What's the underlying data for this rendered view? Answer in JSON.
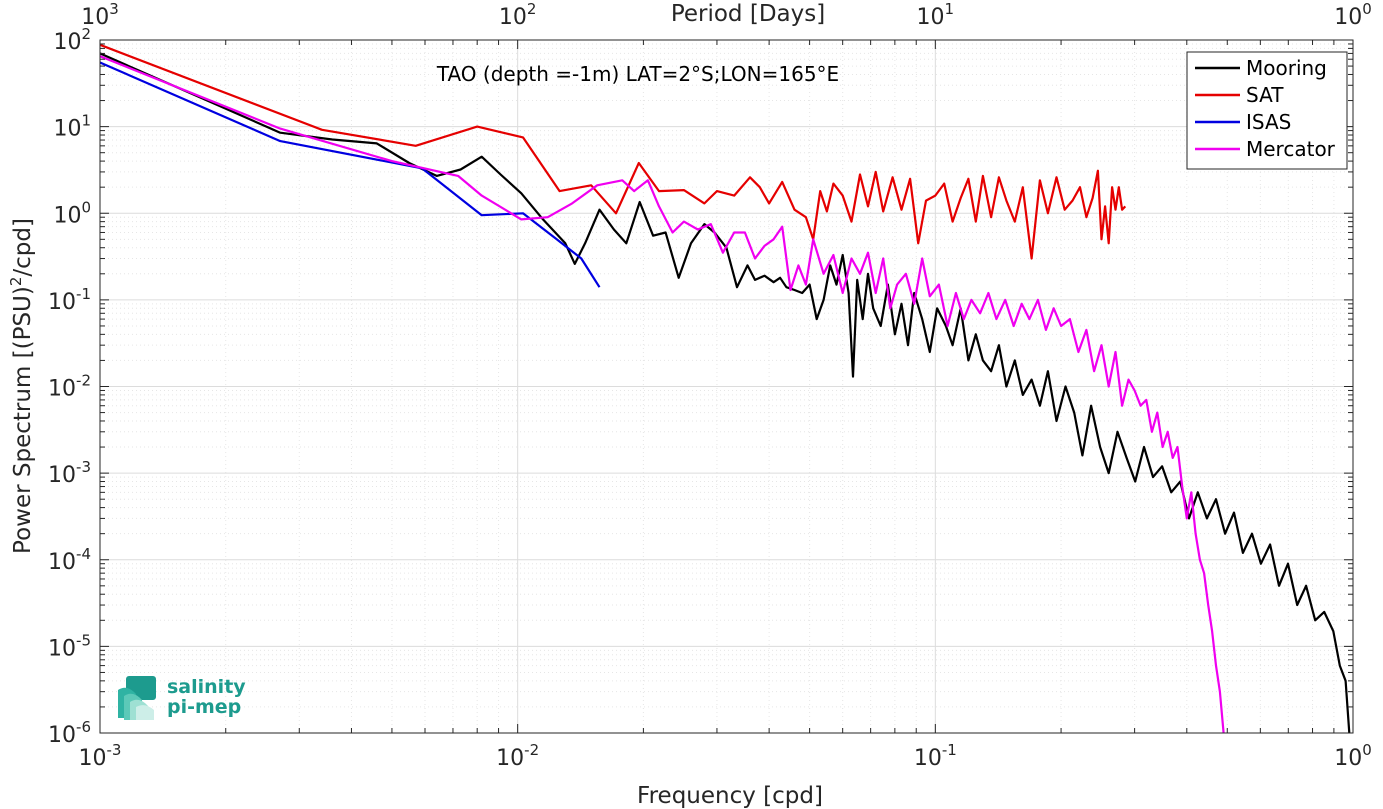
{
  "chart_data": {
    "type": "line",
    "annotation": "TAO (depth =-1m) LAT=2°S;LON=165°E",
    "xlabel": "Frequency [cpd]",
    "ylabel": "Power Spectrum [(PSU)²/cpd]",
    "ylabel_main": "Power Spectrum [(PSU)",
    "ylabel_sup": "2",
    "ylabel_tail": "/cpd]",
    "top_axis_label": "Period [Days]",
    "x_scale": "log",
    "y_scale": "log",
    "xlim": [
      0.001,
      1
    ],
    "ylim": [
      1e-06,
      100
    ],
    "x_ticks": [
      {
        "base": "10",
        "exp": "-3",
        "value": 0.001
      },
      {
        "base": "10",
        "exp": "-2",
        "value": 0.01
      },
      {
        "base": "10",
        "exp": "-1",
        "value": 0.1
      },
      {
        "base": "10",
        "exp": "0",
        "value": 1
      }
    ],
    "y_ticks": [
      {
        "base": "10",
        "exp": "2",
        "value": 100
      },
      {
        "base": "10",
        "exp": "1",
        "value": 10
      },
      {
        "base": "10",
        "exp": "0",
        "value": 1
      },
      {
        "base": "10",
        "exp": "-1",
        "value": 0.1
      },
      {
        "base": "10",
        "exp": "-2",
        "value": 0.01
      },
      {
        "base": "10",
        "exp": "-3",
        "value": 0.001
      },
      {
        "base": "10",
        "exp": "-4",
        "value": 0.0001
      },
      {
        "base": "10",
        "exp": "-5",
        "value": 1e-05
      },
      {
        "base": "10",
        "exp": "-6",
        "value": 1e-06
      }
    ],
    "top_ticks": [
      {
        "base": "10",
        "exp": "3",
        "value": 1000
      },
      {
        "base": "10",
        "exp": "2",
        "value": 100
      },
      {
        "base": "10",
        "exp": "1",
        "value": 10
      },
      {
        "base": "10",
        "exp": "0",
        "value": 1
      }
    ],
    "grid": true,
    "legend_position": "top-right",
    "series": [
      {
        "name": "Mooring",
        "color": "#000000",
        "x": [
          0.001,
          0.0027,
          0.0036,
          0.0046,
          0.0055,
          0.0064,
          0.0073,
          0.0082,
          0.0091,
          0.0102,
          0.0115,
          0.013,
          0.0137,
          0.0145,
          0.0157,
          0.017,
          0.0182,
          0.0196,
          0.0211,
          0.0226,
          0.0243,
          0.026,
          0.028,
          0.0296,
          0.0316,
          0.0335,
          0.0355,
          0.037,
          0.039,
          0.041,
          0.0425,
          0.044,
          0.046,
          0.048,
          0.05,
          0.052,
          0.054,
          0.056,
          0.058,
          0.06,
          0.062,
          0.0635,
          0.065,
          0.067,
          0.069,
          0.071,
          0.074,
          0.077,
          0.08,
          0.083,
          0.086,
          0.089,
          0.093,
          0.097,
          0.101,
          0.106,
          0.11,
          0.115,
          0.12,
          0.125,
          0.13,
          0.136,
          0.142,
          0.148,
          0.155,
          0.162,
          0.17,
          0.178,
          0.186,
          0.195,
          0.205,
          0.215,
          0.225,
          0.236,
          0.248,
          0.26,
          0.273,
          0.287,
          0.301,
          0.316,
          0.332,
          0.349,
          0.367,
          0.386,
          0.405,
          0.425,
          0.447,
          0.47,
          0.494,
          0.519,
          0.545,
          0.573,
          0.602,
          0.633,
          0.665,
          0.699,
          0.735,
          0.772,
          0.812,
          0.853,
          0.897,
          0.93,
          0.96,
          0.98
        ],
        "y": [
          70,
          8.5,
          7.1,
          6.4,
          3.8,
          2.7,
          3.2,
          4.5,
          2.8,
          1.7,
          0.85,
          0.45,
          0.26,
          0.45,
          1.1,
          0.65,
          0.45,
          1.35,
          0.55,
          0.6,
          0.18,
          0.45,
          0.75,
          0.6,
          0.4,
          0.14,
          0.25,
          0.17,
          0.19,
          0.16,
          0.18,
          0.14,
          0.13,
          0.12,
          0.15,
          0.06,
          0.1,
          0.25,
          0.15,
          0.33,
          0.12,
          0.013,
          0.17,
          0.06,
          0.2,
          0.08,
          0.05,
          0.15,
          0.04,
          0.09,
          0.03,
          0.12,
          0.06,
          0.025,
          0.08,
          0.05,
          0.03,
          0.08,
          0.02,
          0.04,
          0.02,
          0.015,
          0.03,
          0.01,
          0.02,
          0.008,
          0.012,
          0.006,
          0.015,
          0.004,
          0.01,
          0.005,
          0.0016,
          0.006,
          0.002,
          0.001,
          0.003,
          0.0015,
          0.0008,
          0.002,
          0.0009,
          0.0012,
          0.0006,
          0.0008,
          0.0003,
          0.0006,
          0.0003,
          0.0005,
          0.0002,
          0.00035,
          0.00012,
          0.0002,
          9e-05,
          0.00015,
          5e-05,
          9e-05,
          3e-05,
          5e-05,
          2e-05,
          2.5e-05,
          1.5e-05,
          6e-06,
          4e-06,
          1e-06
        ]
      },
      {
        "name": "SAT",
        "color": "#e50000",
        "x": [
          0.001,
          0.0034,
          0.0057,
          0.008,
          0.0103,
          0.0126,
          0.015,
          0.0172,
          0.0195,
          0.0218,
          0.025,
          0.028,
          0.03,
          0.033,
          0.036,
          0.038,
          0.04,
          0.043,
          0.046,
          0.049,
          0.051,
          0.053,
          0.055,
          0.057,
          0.06,
          0.063,
          0.066,
          0.069,
          0.072,
          0.075,
          0.079,
          0.083,
          0.087,
          0.091,
          0.095,
          0.1,
          0.105,
          0.11,
          0.115,
          0.12,
          0.125,
          0.13,
          0.136,
          0.142,
          0.148,
          0.155,
          0.162,
          0.17,
          0.178,
          0.186,
          0.195,
          0.204,
          0.213,
          0.222,
          0.23,
          0.238,
          0.245,
          0.25,
          0.255,
          0.26,
          0.265,
          0.27,
          0.275,
          0.28,
          0.285
        ],
        "y": [
          88,
          9.2,
          6,
          10,
          7.5,
          1.8,
          2.1,
          1,
          3.8,
          1.8,
          1.85,
          1.3,
          1.8,
          1.6,
          2.6,
          2,
          1.3,
          2.3,
          1.1,
          0.9,
          0.5,
          1.8,
          1.05,
          2.2,
          1.6,
          0.8,
          2.8,
          1.2,
          3,
          1.05,
          2.6,
          1.1,
          2.5,
          0.45,
          1.4,
          1.6,
          2.2,
          0.8,
          1.5,
          2.5,
          0.8,
          2.7,
          0.9,
          2.6,
          1.4,
          0.8,
          2,
          0.3,
          2.4,
          1,
          2.6,
          1.1,
          1.4,
          2,
          0.9,
          1.5,
          3.1,
          0.5,
          1.2,
          0.45,
          2,
          1.1,
          2,
          1.1,
          1.2
        ]
      },
      {
        "name": "ISAS",
        "color": "#0000e0",
        "x": [
          0.001,
          0.0027,
          0.0059,
          0.0082,
          0.0103,
          0.0124,
          0.0142,
          0.0157
        ],
        "y": [
          55,
          6.8,
          3.3,
          0.95,
          1,
          0.5,
          0.3,
          0.14
        ]
      },
      {
        "name": "Mercator",
        "color": "#f000f0",
        "x": [
          0.001,
          0.0027,
          0.005,
          0.0072,
          0.0082,
          0.0102,
          0.0118,
          0.0135,
          0.0155,
          0.0178,
          0.019,
          0.0205,
          0.0218,
          0.0235,
          0.025,
          0.027,
          0.029,
          0.031,
          0.033,
          0.035,
          0.037,
          0.039,
          0.041,
          0.043,
          0.045,
          0.047,
          0.049,
          0.051,
          0.054,
          0.057,
          0.06,
          0.063,
          0.066,
          0.069,
          0.072,
          0.075,
          0.078,
          0.081,
          0.085,
          0.089,
          0.093,
          0.097,
          0.102,
          0.107,
          0.112,
          0.117,
          0.122,
          0.128,
          0.134,
          0.14,
          0.147,
          0.154,
          0.161,
          0.168,
          0.176,
          0.184,
          0.192,
          0.2,
          0.21,
          0.22,
          0.23,
          0.24,
          0.25,
          0.26,
          0.27,
          0.28,
          0.29,
          0.3,
          0.31,
          0.32,
          0.33,
          0.34,
          0.35,
          0.36,
          0.37,
          0.38,
          0.39,
          0.4,
          0.41,
          0.42,
          0.43,
          0.44,
          0.45,
          0.46,
          0.47,
          0.48,
          0.49
        ],
        "y": [
          65,
          9.5,
          4,
          2.7,
          1.6,
          0.85,
          0.9,
          1.3,
          2.1,
          2.4,
          1.8,
          2.4,
          1.2,
          0.6,
          0.8,
          0.65,
          0.75,
          0.35,
          0.6,
          0.6,
          0.3,
          0.42,
          0.5,
          0.7,
          0.13,
          0.25,
          0.15,
          0.5,
          0.2,
          0.33,
          0.12,
          0.3,
          0.2,
          0.35,
          0.12,
          0.3,
          0.08,
          0.15,
          0.2,
          0.09,
          0.3,
          0.11,
          0.15,
          0.05,
          0.12,
          0.06,
          0.1,
          0.07,
          0.12,
          0.06,
          0.1,
          0.05,
          0.09,
          0.06,
          0.1,
          0.045,
          0.08,
          0.05,
          0.06,
          0.025,
          0.045,
          0.015,
          0.03,
          0.01,
          0.025,
          0.006,
          0.012,
          0.009,
          0.006,
          0.007,
          0.003,
          0.005,
          0.002,
          0.003,
          0.0015,
          0.002,
          0.0007,
          0.0003,
          0.0006,
          0.0002,
          0.0001,
          7e-05,
          3e-05,
          1.5e-05,
          6e-06,
          3e-06,
          1e-06
        ]
      }
    ]
  },
  "logo": {
    "line1": "salinity",
    "line2": "pi-mep",
    "color": "#1d9b8e"
  }
}
